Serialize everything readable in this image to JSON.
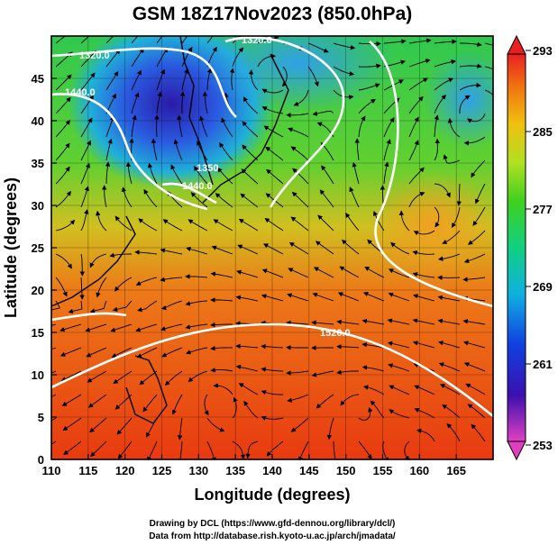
{
  "title": "GSM 18Z17Nov2023 (850.0hPa)",
  "xlabel": "Longitude (degrees)",
  "ylabel": "Latitude  (degrees)",
  "x_ticks": [
    "110",
    "115",
    "120",
    "125",
    "130",
    "135",
    "140",
    "145",
    "150",
    "155",
    "160",
    "165"
  ],
  "y_ticks": [
    "0",
    "5",
    "10",
    "15",
    "20",
    "25",
    "30",
    "35",
    "40",
    "45"
  ],
  "colorbar": {
    "min": 253,
    "max": 293,
    "tick_labels": [
      "293",
      "285",
      "277",
      "269",
      "261",
      "253"
    ]
  },
  "contour_labels": [
    "1320.0",
    "1320.0",
    "1440.0",
    "1350",
    "1440.0",
    "1520.0"
  ],
  "credits": {
    "line1": "Drawing by DCL (https://www.gfd-dennou.org/library/dcl/)",
    "line2": "Data from http://database.rish.kyoto-u.ac.jp/arch/jmadata/"
  },
  "colors": {
    "cold": "#2a2ad8",
    "mid": "#33cc33",
    "warm": "#e83a10"
  }
}
